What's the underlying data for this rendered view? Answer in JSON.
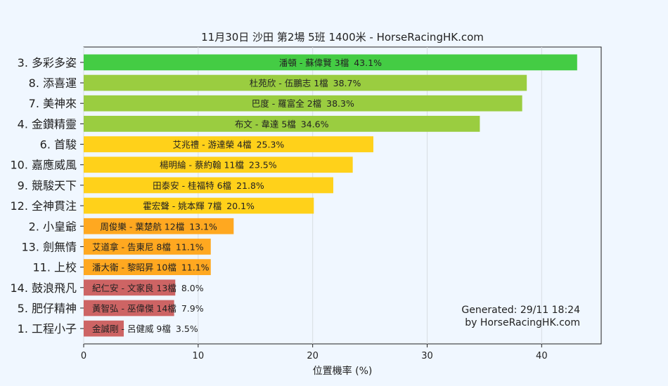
{
  "chart_data": {
    "type": "bar",
    "orientation": "horizontal",
    "title": "11月30日  沙田  第2場  5班  1400米 - HorseRacingHK.com",
    "xlabel": "位置機率 (%)",
    "ylabel": "",
    "xlim": [
      0,
      45.2
    ],
    "xticks": [
      0,
      10,
      20,
      30,
      40
    ],
    "grid": true,
    "watermark": [
      "Generated: 29/11 18:24",
      "by HorseRacingHK.com"
    ],
    "watermark_color": "#9aa3ab",
    "bars": [
      {
        "category": "3. 多彩多姿",
        "label": "潘頓 - 蘇偉賢 3檔",
        "value": 43.1,
        "value_text": "43.1%",
        "color": "#44cc44"
      },
      {
        "category": "8. 添喜運",
        "label": "杜苑欣 - 伍鵬志 1檔",
        "value": 38.7,
        "value_text": "38.7%",
        "color": "#9acd40"
      },
      {
        "category": "7. 美神來",
        "label": "巴度 - 羅富全 2檔",
        "value": 38.3,
        "value_text": "38.3%",
        "color": "#9acd40"
      },
      {
        "category": "4. 金鑽精靈",
        "label": "布文 - 韋達 5檔",
        "value": 34.6,
        "value_text": "34.6%",
        "color": "#9acd40"
      },
      {
        "category": "6. 首駿",
        "label": "艾兆禮 - 游達榮 4檔",
        "value": 25.3,
        "value_text": "25.3%",
        "color": "#ffd11a"
      },
      {
        "category": "10. 嘉應威風",
        "label": "楊明綸 - 蔡約翰 11檔",
        "value": 23.5,
        "value_text": "23.5%",
        "color": "#ffd11a"
      },
      {
        "category": "9. 競駿天下",
        "label": "田泰安 - 桂福特 6檔",
        "value": 21.8,
        "value_text": "21.8%",
        "color": "#ffd11a"
      },
      {
        "category": "12. 全神貫注",
        "label": "霍宏聲 - 姚本輝 7檔",
        "value": 20.1,
        "value_text": "20.1%",
        "color": "#ffd11a"
      },
      {
        "category": "2. 小皇爺",
        "label": "周俊樂 - 葉楚航 12檔",
        "value": 13.1,
        "value_text": "13.1%",
        "color": "#ffa820"
      },
      {
        "category": "13. 劍無情",
        "label": "艾道拿 - 告東尼 8檔",
        "value": 11.1,
        "value_text": "11.1%",
        "color": "#ffa820"
      },
      {
        "category": "11. 上校",
        "label": "潘大衛 - 黎昭昇 10檔",
        "value": 11.1,
        "value_text": "11.1%",
        "color": "#ffa820"
      },
      {
        "category": "14. 鼓浪飛凡",
        "label": "紀仁安 - 文家良 13檔",
        "value": 8.0,
        "value_text": "8.0%",
        "color": "#cd6464"
      },
      {
        "category": "5. 肥仔精神",
        "label": "黃智弘 - 巫偉傑 14檔",
        "value": 7.9,
        "value_text": "7.9%",
        "color": "#cd6464"
      },
      {
        "category": "1. 工程小子",
        "label": "金誠剛 - 呂健威 9檔",
        "value": 3.5,
        "value_text": "3.5%",
        "color": "#cd6464"
      }
    ]
  }
}
